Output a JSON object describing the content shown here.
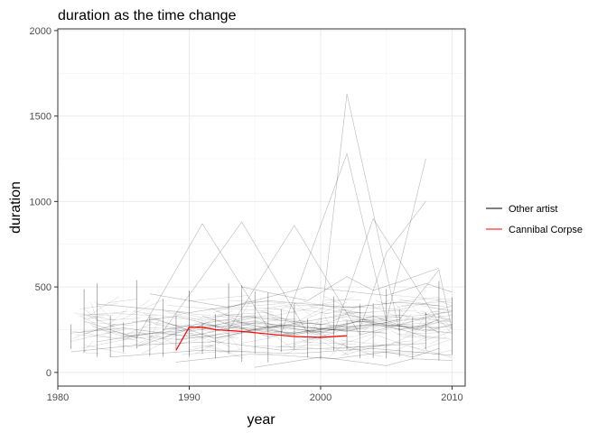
{
  "chart_data": {
    "type": "line",
    "title": "duration as the time change",
    "xlabel": "year",
    "ylabel": "duration",
    "xlim": [
      1980,
      2011
    ],
    "ylim": [
      -80,
      2010
    ],
    "x_ticks": [
      1980,
      1990,
      2000,
      2010
    ],
    "y_ticks": [
      0,
      500,
      1000,
      1500,
      2000
    ],
    "grid": true,
    "legend_position": "right",
    "colors": {
      "other": "#000000",
      "highlight": "#ff0000"
    },
    "series": [
      {
        "name": "Other artist",
        "note_style": "many thin translucent black lines, one per artist",
        "lines": [
          {
            "x": [
              1981,
              1985,
              1990,
              1995,
              2001,
              2005
            ],
            "y": [
              230,
              260,
              210,
              290,
              250,
              230
            ]
          },
          {
            "x": [
              1982,
              1986,
              1991,
              1996,
              2002,
              2008
            ],
            "y": [
              300,
              200,
              870,
              260,
              340,
              210
            ]
          },
          {
            "x": [
              1983,
              1988,
              1994,
              1999,
              2004,
              2009
            ],
            "y": [
              180,
              240,
              880,
              230,
              280,
              260
            ]
          },
          {
            "x": [
              1984,
              1989,
              1993,
              1998,
              2003,
              2007
            ],
            "y": [
              270,
              330,
              250,
              860,
              220,
              300
            ]
          },
          {
            "x": [
              1985,
              1990,
              1995,
              2000,
              2002,
              2006
            ],
            "y": [
              210,
              250,
              320,
              280,
              1630,
              240
            ]
          },
          {
            "x": [
              1986,
              1991,
              1997,
              2002,
              2005,
              2008
            ],
            "y": [
              150,
              280,
              230,
              1280,
              300,
              1250
            ]
          },
          {
            "x": [
              1987,
              1992,
              1996,
              2001,
              2004,
              2009
            ],
            "y": [
              320,
              200,
              270,
              230,
              900,
              290
            ]
          },
          {
            "x": [
              1988,
              1993,
              1998,
              2003,
              2006,
              2010
            ],
            "y": [
              250,
              310,
              220,
              300,
              270,
              230
            ]
          },
          {
            "x": [
              1989,
              1994,
              1999,
              2003,
              2005,
              2008
            ],
            "y": [
              190,
              240,
              290,
              260,
              700,
              1000
            ]
          },
          {
            "x": [
              1990,
              1995,
              2000,
              2004,
              2007,
              2009
            ],
            "y": [
              240,
              300,
              230,
              330,
              250,
              310
            ]
          },
          {
            "x": [
              1991,
              1996,
              2001,
              2005,
              2008,
              2010
            ],
            "y": [
              330,
              210,
              260,
              290,
              240,
              280
            ]
          },
          {
            "x": [
              1992,
              1997,
              2002,
              2006,
              2009,
              2010
            ],
            "y": [
              200,
              280,
              240,
              310,
              600,
              250
            ]
          },
          {
            "x": [
              1993,
              1998,
              2003,
              2006,
              2008,
              2009
            ],
            "y": [
              270,
              230,
              300,
              250,
              280,
              230
            ]
          },
          {
            "x": [
              1981,
              1986,
              1992,
              1997,
              2003,
              2008
            ],
            "y": [
              120,
              160,
              180,
              130,
              150,
              170
            ]
          },
          {
            "x": [
              1983,
              1990,
              1996,
              2002,
              2006,
              2009
            ],
            "y": [
              400,
              350,
              420,
              380,
              410,
              390
            ]
          },
          {
            "x": [
              1984,
              1991,
              1998,
              2004,
              2007,
              2010
            ],
            "y": [
              90,
              130,
              110,
              140,
              120,
              100
            ]
          },
          {
            "x": [
              1987,
              1993,
              1999,
              2005,
              2008,
              2010
            ],
            "y": [
              460,
              380,
              500,
              450,
              520,
              470
            ]
          },
          {
            "x": [
              1989,
              1995,
              2001,
              2005,
              2007,
              2009
            ],
            "y": [
              60,
              110,
              80,
              120,
              90,
              140
            ]
          },
          {
            "x": [
              1994,
              1999,
              2002,
              2004,
              2006,
              2009
            ],
            "y": [
              500,
              420,
              560,
              480,
              530,
              610
            ]
          },
          {
            "x": [
              1995,
              2000,
              2003,
              2005,
              2007,
              2010
            ],
            "y": [
              30,
              90,
              60,
              40,
              80,
              70
            ]
          }
        ]
      },
      {
        "name": "Cannibal Corpse",
        "x": [
          1989,
          1990,
          1991,
          1992,
          1994,
          1996,
          1998,
          2000,
          2002
        ],
        "y": [
          130,
          265,
          265,
          250,
          240,
          225,
          210,
          205,
          215
        ]
      }
    ]
  }
}
